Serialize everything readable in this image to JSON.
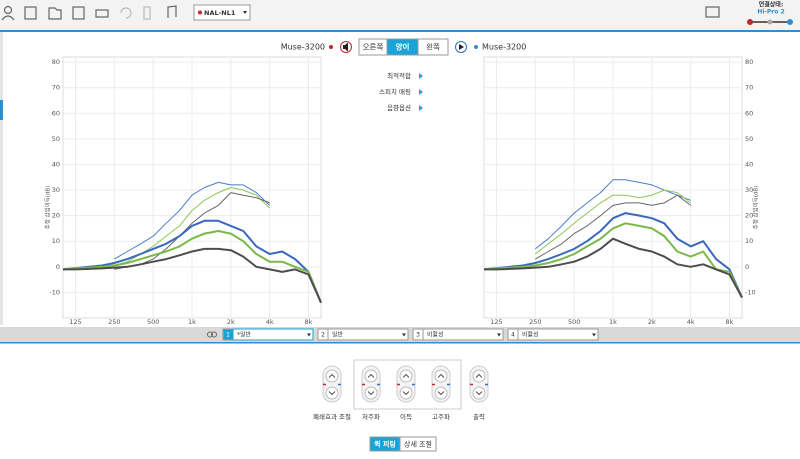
{
  "toolbar": {
    "fitting_formula": "NAL-NL1",
    "connection_label": "연결상태:",
    "connection_device": "Hi-Pro 2"
  },
  "ear_selector": {
    "left_device": "Muse-3200",
    "buttons": [
      "오른쪽",
      "양이",
      "왼쪽"
    ],
    "active": 1,
    "right_device": "Muse-3200"
  },
  "menu": [
    "최적적합",
    "스피치 매핑",
    "음향옵션"
  ],
  "chart_data": [
    {
      "type": "line",
      "ylabel": "추정 삽입이득(dB)",
      "yaxis_side": "left",
      "log_x": true,
      "grid": true,
      "xlim": [
        100,
        10000
      ],
      "ylim": [
        -20,
        82
      ],
      "xticks": [
        125,
        250,
        500,
        {
          "value": 1000,
          "label": "1k"
        },
        {
          "value": 2000,
          "label": "2k"
        },
        {
          "value": 4000,
          "label": "4k"
        },
        {
          "value": 8000,
          "label": "8k"
        }
      ],
      "yticks": [
        -10,
        0,
        10,
        20,
        30,
        40,
        50,
        60,
        70,
        80
      ],
      "x": [
        100,
        125,
        160,
        200,
        250,
        315,
        400,
        500,
        630,
        800,
        1000,
        1250,
        1600,
        2000,
        2500,
        3150,
        4000,
        5000,
        6300,
        8000,
        10000
      ],
      "series": [
        {
          "color": "#4a7fc9",
          "line_width": 1,
          "values": [
            null,
            null,
            null,
            null,
            3,
            6,
            9,
            12,
            17,
            22,
            28,
            31,
            33,
            32,
            32,
            29,
            24,
            null,
            null,
            null,
            null
          ]
        },
        {
          "color": "#8cc65a",
          "line_width": 1,
          "values": [
            null,
            null,
            null,
            null,
            0.5,
            2,
            5,
            8,
            12,
            16,
            22,
            26,
            29,
            31,
            30,
            28,
            23,
            null,
            null,
            null,
            null
          ]
        },
        {
          "color": "#666666",
          "line_width": 1,
          "values": [
            null,
            null,
            null,
            null,
            -1,
            0,
            1,
            3,
            7,
            12,
            17,
            21,
            24,
            29,
            28,
            27,
            25,
            null,
            null,
            null,
            null
          ]
        },
        {
          "color": "#3a67c0",
          "line_width": 2,
          "values": [
            -1,
            -0.5,
            0,
            0.5,
            1.5,
            3,
            5,
            7,
            9,
            12,
            16,
            18,
            18,
            16,
            14,
            8,
            5,
            6,
            3,
            -2,
            -14
          ]
        },
        {
          "color": "#7ab848",
          "line_width": 2,
          "values": [
            -1,
            -0.5,
            -0.3,
            0,
            0.5,
            1.5,
            3,
            4.5,
            6,
            8,
            11,
            13,
            14,
            13,
            10,
            5,
            2,
            2,
            0,
            -2,
            -14
          ]
        },
        {
          "color": "#4d4d4d",
          "line_width": 2,
          "values": [
            -1,
            -1,
            -0.8,
            -0.6,
            -0.3,
            0,
            1,
            2,
            3,
            4.5,
            6,
            7,
            7,
            6.5,
            4,
            0,
            -1,
            -2,
            -1,
            -3,
            -14
          ]
        }
      ]
    },
    {
      "type": "line",
      "ylabel": "추정 삽입이득(dB)",
      "yaxis_side": "right",
      "log_x": true,
      "grid": true,
      "xlim": [
        100,
        10000
      ],
      "ylim": [
        -20,
        82
      ],
      "xticks": [
        125,
        250,
        500,
        {
          "value": 1000,
          "label": "1k"
        },
        {
          "value": 2000,
          "label": "2k"
        },
        {
          "value": 4000,
          "label": "4k"
        },
        {
          "value": 8000,
          "label": "8k"
        }
      ],
      "yticks": [
        -10,
        0,
        10,
        20,
        30,
        40,
        50,
        60,
        70,
        80
      ],
      "x": [
        100,
        125,
        160,
        200,
        250,
        315,
        400,
        500,
        630,
        800,
        1000,
        1250,
        1600,
        2000,
        2500,
        3150,
        4000,
        5000,
        6300,
        8000,
        10000
      ],
      "series": [
        {
          "color": "#4a7fc9",
          "line_width": 1,
          "values": [
            null,
            null,
            null,
            null,
            7,
            11,
            16,
            21,
            25,
            29,
            34,
            34,
            33,
            32,
            30,
            28,
            26,
            null,
            null,
            null,
            null
          ]
        },
        {
          "color": "#8cc65a",
          "line_width": 1,
          "values": [
            null,
            null,
            null,
            null,
            5,
            9,
            13,
            17,
            21,
            25,
            28,
            28,
            27,
            28,
            30,
            29,
            25,
            null,
            null,
            null,
            null
          ]
        },
        {
          "color": "#666666",
          "line_width": 1,
          "values": [
            null,
            null,
            null,
            null,
            3,
            6,
            9,
            13,
            16,
            20,
            24,
            25,
            25,
            24,
            25,
            28,
            24,
            null,
            null,
            null,
            null
          ]
        },
        {
          "color": "#3a67c0",
          "line_width": 2,
          "values": [
            -1,
            -0.5,
            0,
            0.5,
            1.5,
            3,
            5,
            7,
            10,
            14,
            19,
            21,
            20,
            19,
            17,
            11,
            8,
            10,
            3,
            -1,
            -12
          ]
        },
        {
          "color": "#7ab848",
          "line_width": 2,
          "values": [
            -1,
            -0.5,
            -0.3,
            0,
            0.5,
            1.5,
            3,
            5,
            8,
            11,
            15,
            17,
            16,
            15,
            12,
            6,
            4,
            6,
            -1,
            -2,
            -12
          ]
        },
        {
          "color": "#4d4d4d",
          "line_width": 2,
          "values": [
            -1,
            -1,
            -0.8,
            -0.6,
            -0.3,
            0,
            1,
            2,
            4,
            7,
            11,
            9,
            7,
            6,
            4,
            1,
            0,
            1,
            -1,
            -3,
            -12
          ]
        }
      ]
    }
  ],
  "programs": [
    {
      "number": 1,
      "name": "*일반"
    },
    {
      "number": 2,
      "name": "일반"
    },
    {
      "number": 3,
      "name": "비활성"
    },
    {
      "number": 4,
      "name": "비활성"
    }
  ],
  "active_program": 0,
  "controls": [
    "폐쇄효과 조절",
    "저주파",
    "이득",
    "고주파",
    "출력"
  ],
  "mode_buttons": [
    "퀵 피팅",
    "상세 조절"
  ],
  "active_mode": 0
}
